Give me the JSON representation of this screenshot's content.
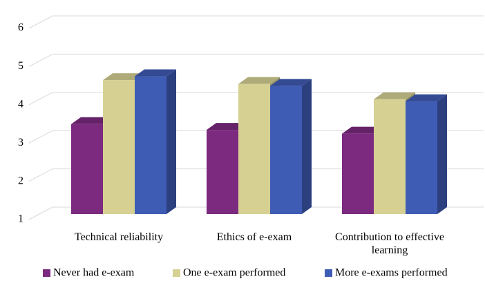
{
  "chart_data": {
    "type": "bar3d",
    "categories": [
      "Technical reliability",
      "Ethics of e-exam",
      "Contribution to effective learning"
    ],
    "series": [
      {
        "name": "Never had e-exam",
        "color": "#7b2a7f",
        "values": [
          3.35,
          3.2,
          3.1
        ]
      },
      {
        "name": "One e-exam performed",
        "color": "#d6d193",
        "values": [
          4.5,
          4.4,
          4.0
        ]
      },
      {
        "name": "More e-exams performed",
        "color": "#3f5cb5",
        "values": [
          4.6,
          4.35,
          3.95
        ]
      }
    ],
    "ylim": [
      1,
      6
    ],
    "yticks": [
      1,
      2,
      3,
      4,
      5,
      6
    ],
    "grid": true,
    "legend": "bottom"
  }
}
